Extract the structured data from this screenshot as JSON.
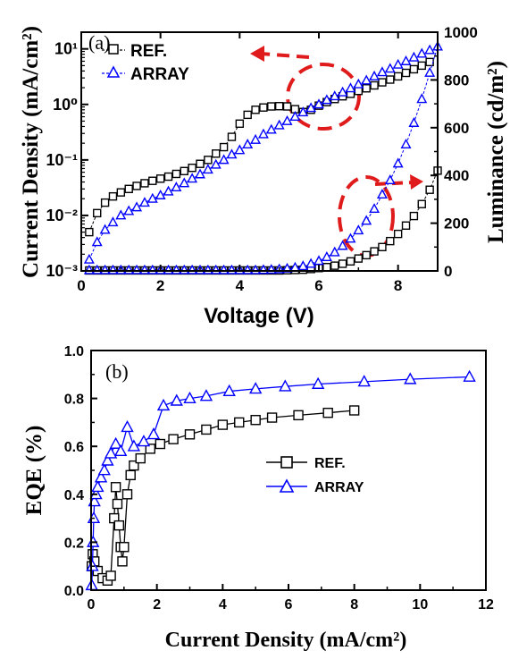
{
  "chart_data": [
    {
      "panel": "(a)",
      "type": "scatter",
      "xlabel": "Voltage (V)",
      "ylabel": "Current Density (mA/cm²)",
      "ylabel_right": "Luminance (cd/m²)",
      "xlim": [
        0,
        9
      ],
      "ylim": [
        0.001,
        20
      ],
      "y_scale": "log",
      "ylim_right": [
        0,
        1000
      ],
      "x_ticks": [
        "0",
        "2",
        "4",
        "6",
        "8"
      ],
      "y_ticks": [
        "10⁻³",
        "10⁻²",
        "10⁻¹",
        "10⁰",
        "10¹"
      ],
      "y_right_ticks": [
        "0",
        "200",
        "400",
        "600",
        "800",
        "1000"
      ],
      "legend": [
        "REF.",
        "ARRAY"
      ],
      "legend_position": "top-left",
      "annotations": [
        "current density curves → left axis",
        "luminance curves → right axis"
      ],
      "series": [
        {
          "name": "REF.",
          "axis": "left",
          "marker": "square",
          "color": "#000000",
          "x": [
            0.2,
            0.4,
            0.6,
            0.8,
            1.0,
            1.2,
            1.4,
            1.6,
            1.8,
            2.0,
            2.2,
            2.4,
            2.6,
            2.8,
            3.0,
            3.2,
            3.4,
            3.6,
            3.8,
            4.0,
            4.2,
            4.4,
            4.6,
            4.8,
            5.0,
            5.2,
            5.4,
            5.6,
            5.8,
            6.0,
            6.2,
            6.4,
            6.6,
            6.8,
            7.0,
            7.2,
            7.4,
            7.6,
            7.8,
            8.0,
            8.2,
            8.4,
            8.6,
            8.8
          ],
          "y": [
            0.005,
            0.011,
            0.017,
            0.022,
            0.026,
            0.03,
            0.034,
            0.038,
            0.042,
            0.046,
            0.05,
            0.056,
            0.063,
            0.072,
            0.085,
            0.1,
            0.13,
            0.17,
            0.26,
            0.45,
            0.65,
            0.8,
            0.88,
            0.92,
            0.93,
            0.92,
            0.82,
            0.73,
            0.8,
            0.95,
            1.1,
            1.25,
            1.4,
            1.55,
            1.75,
            1.95,
            2.2,
            2.5,
            2.8,
            3.2,
            3.7,
            4.3,
            5.0,
            5.8
          ]
        },
        {
          "name": "ARRAY",
          "axis": "left",
          "marker": "triangle",
          "color": "#0000ff",
          "x": [
            0.2,
            0.4,
            0.6,
            0.8,
            1.0,
            1.2,
            1.4,
            1.6,
            1.8,
            2.0,
            2.2,
            2.4,
            2.6,
            2.8,
            3.0,
            3.2,
            3.4,
            3.6,
            3.8,
            4.0,
            4.2,
            4.4,
            4.6,
            4.8,
            5.0,
            5.2,
            5.4,
            5.6,
            5.8,
            6.0,
            6.2,
            6.4,
            6.6,
            6.8,
            7.0,
            7.2,
            7.4,
            7.6,
            7.8,
            8.0,
            8.2,
            8.4,
            8.6,
            8.8
          ],
          "y": [
            0.0016,
            0.0033,
            0.0055,
            0.0075,
            0.01,
            0.012,
            0.014,
            0.017,
            0.02,
            0.023,
            0.027,
            0.032,
            0.038,
            0.046,
            0.055,
            0.067,
            0.082,
            0.1,
            0.125,
            0.15,
            0.19,
            0.23,
            0.29,
            0.35,
            0.42,
            0.5,
            0.6,
            0.72,
            0.86,
            1.0,
            1.2,
            1.4,
            1.65,
            1.95,
            2.3,
            2.7,
            3.2,
            3.8,
            4.4,
            5.2,
            6.0,
            7.0,
            8.2,
            9.5
          ]
        },
        {
          "name": "REF.",
          "axis": "right",
          "marker": "square",
          "color": "#000000",
          "x": [
            0.2,
            0.4,
            0.6,
            0.8,
            1.0,
            1.2,
            1.4,
            1.6,
            1.8,
            2.0,
            2.2,
            2.4,
            2.6,
            2.8,
            3.0,
            3.2,
            3.4,
            3.6,
            3.8,
            4.0,
            4.2,
            4.4,
            4.6,
            4.8,
            5.0,
            5.2,
            5.4,
            5.6,
            5.8,
            6.0,
            6.2,
            6.4,
            6.6,
            6.8,
            7.0,
            7.2,
            7.4,
            7.6,
            7.8,
            8.0,
            8.2,
            8.4,
            8.6,
            8.8,
            9.0
          ],
          "y": [
            2,
            2,
            2,
            2,
            2,
            2,
            2,
            2,
            2,
            2,
            2,
            2,
            2,
            2,
            2,
            2,
            2,
            2,
            2,
            2,
            2,
            2,
            2,
            2,
            2,
            3,
            4,
            5,
            8,
            12,
            16,
            22,
            30,
            40,
            52,
            66,
            82,
            100,
            125,
            155,
            190,
            230,
            280,
            340,
            420
          ]
        },
        {
          "name": "ARRAY",
          "axis": "right",
          "marker": "triangle",
          "color": "#0000ff",
          "x": [
            0.2,
            0.4,
            0.6,
            0.8,
            1.0,
            1.2,
            1.4,
            1.6,
            1.8,
            2.0,
            2.2,
            2.4,
            2.6,
            2.8,
            3.0,
            3.2,
            3.4,
            3.6,
            3.8,
            4.0,
            4.2,
            4.4,
            4.6,
            4.8,
            5.0,
            5.2,
            5.4,
            5.6,
            5.8,
            6.0,
            6.2,
            6.4,
            6.6,
            6.8,
            7.0,
            7.2,
            7.4,
            7.6,
            7.8,
            8.0,
            8.2,
            8.4,
            8.6,
            8.8,
            9.0
          ],
          "y": [
            3,
            3,
            3,
            3,
            3,
            3,
            3,
            3,
            3,
            3,
            3,
            3,
            3,
            3,
            3,
            3,
            3,
            3,
            3,
            3,
            3,
            3,
            4,
            5,
            7,
            10,
            14,
            20,
            30,
            42,
            58,
            78,
            105,
            135,
            170,
            210,
            260,
            320,
            380,
            450,
            530,
            620,
            720,
            830,
            940
          ]
        }
      ]
    },
    {
      "panel": "(b)",
      "type": "line",
      "xlabel": "Current Density (mA/cm²)",
      "ylabel": "EQE (%)",
      "xlim": [
        0,
        12
      ],
      "ylim": [
        0,
        1.0
      ],
      "x_ticks": [
        "0",
        "2",
        "4",
        "6",
        "8",
        "10",
        "12"
      ],
      "y_ticks": [
        "0.0",
        "0.2",
        "0.4",
        "0.6",
        "0.8",
        "1.0"
      ],
      "legend": [
        "REF.",
        "ARRAY"
      ],
      "legend_position": "center-right",
      "series": [
        {
          "name": "REF.",
          "marker": "square",
          "color": "#000000",
          "x": [
            0.02,
            0.05,
            0.1,
            0.2,
            0.35,
            0.5,
            0.6,
            0.7,
            0.75,
            0.8,
            0.85,
            0.9,
            0.95,
            1.0,
            1.1,
            1.2,
            1.3,
            1.5,
            1.8,
            2.1,
            2.5,
            3.0,
            3.5,
            4.0,
            4.5,
            5.0,
            5.5,
            6.3,
            7.2,
            8.0
          ],
          "y": [
            0.1,
            0.15,
            0.12,
            0.08,
            0.05,
            0.04,
            0.06,
            0.3,
            0.43,
            0.36,
            0.27,
            0.18,
            0.12,
            0.18,
            0.4,
            0.48,
            0.52,
            0.55,
            0.59,
            0.61,
            0.63,
            0.65,
            0.67,
            0.69,
            0.7,
            0.71,
            0.72,
            0.73,
            0.74,
            0.75
          ]
        },
        {
          "name": "ARRAY",
          "marker": "triangle",
          "color": "#0000ff",
          "x": [
            0.02,
            0.04,
            0.06,
            0.08,
            0.1,
            0.15,
            0.2,
            0.3,
            0.4,
            0.5,
            0.6,
            0.75,
            0.9,
            1.1,
            1.3,
            1.6,
            1.9,
            2.2,
            2.6,
            3.0,
            3.5,
            4.2,
            5.0,
            5.9,
            6.9,
            8.3,
            9.7,
            11.5
          ],
          "y": [
            0.02,
            0.1,
            0.2,
            0.3,
            0.37,
            0.4,
            0.43,
            0.47,
            0.5,
            0.54,
            0.57,
            0.61,
            0.58,
            0.68,
            0.6,
            0.62,
            0.65,
            0.77,
            0.79,
            0.8,
            0.81,
            0.83,
            0.84,
            0.85,
            0.86,
            0.87,
            0.88,
            0.89
          ]
        }
      ]
    }
  ]
}
